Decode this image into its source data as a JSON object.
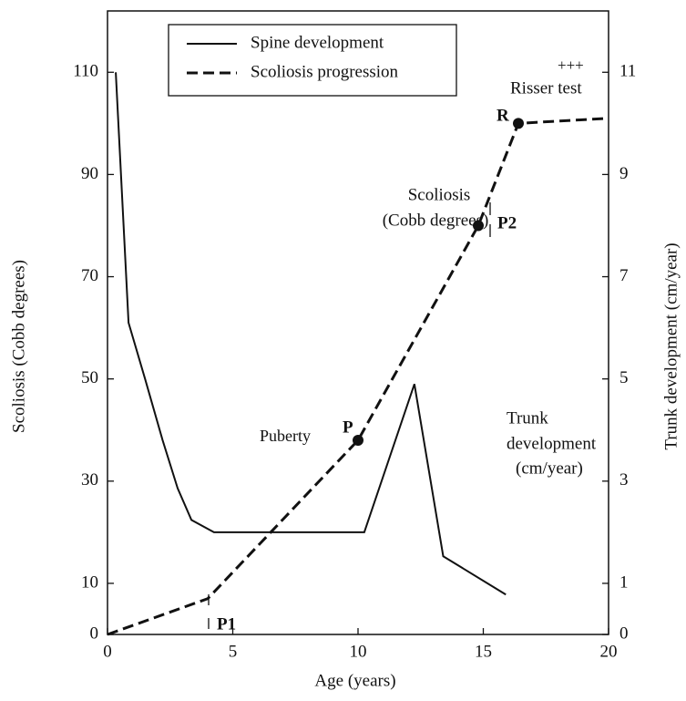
{
  "chart_data": {
    "type": "line",
    "xlabel": "Age (years)",
    "ylabel": "Scoliosis (Cobb degrees)",
    "y2label": "Trunk development (cm/year)",
    "xlim": [
      0,
      20
    ],
    "xticks": [
      0,
      5,
      10,
      15,
      20
    ],
    "ylim": [
      0,
      122
    ],
    "yticks": [
      0,
      10,
      30,
      50,
      70,
      90,
      110
    ],
    "y2lim": [
      0,
      12.2
    ],
    "y2ticks": [
      0,
      1,
      3,
      5,
      7,
      9,
      11
    ],
    "grid": false,
    "legend": "top",
    "series": [
      {
        "name": "Spine development",
        "color": "#111111",
        "axis": "y2",
        "dash": false,
        "x": [
          0.33,
          0.84,
          1.5,
          2.2,
          2.8,
          3.35,
          4.25,
          10.25,
          12.25,
          13.4,
          15.9
        ],
        "values": [
          11,
          6.1,
          5,
          3.8,
          2.86,
          2.24,
          2,
          2,
          4.9,
          1.53,
          0.78
        ]
      },
      {
        "name": "Scoliosis progression",
        "color": "#111111",
        "dash": true,
        "x": [
          0,
          4,
          10,
          14.8,
          16.4,
          20
        ],
        "values": [
          0,
          7,
          38,
          80,
          100,
          101
        ]
      }
    ],
    "annotations": [
      "Puberty",
      "P",
      "P1",
      "Scoliosis",
      "(Cobb degrees)",
      "P2",
      "R",
      "Risser test",
      "+++",
      "Trunk",
      "development",
      "(cm/year)"
    ]
  }
}
